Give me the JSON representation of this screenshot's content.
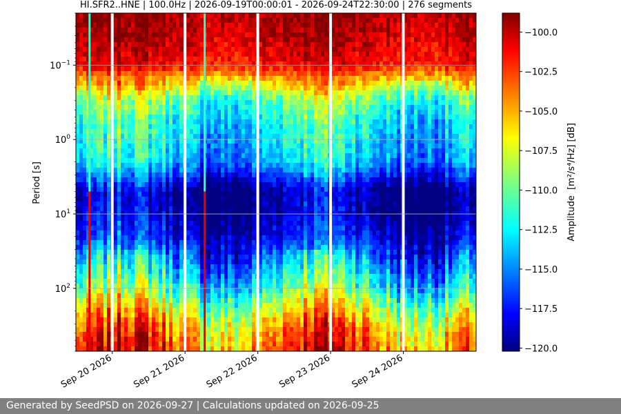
{
  "chart_data": {
    "type": "heatmap",
    "title": "HI.SFR2..HNE | 100.0Hz | 2026-09-19T00:00:01 - 2026-09-24T22:30:00 | 276 segments",
    "xlabel": "",
    "ylabel": "Period [s]",
    "y_scale": "log",
    "x_range": [
      "2026-09-19T12:00",
      "2026-09-25T00:00"
    ],
    "ylim_period_s": [
      0.02,
      700
    ],
    "x_ticks": [
      "Sep 20 2026",
      "Sep 21 2026",
      "Sep 22 2026",
      "Sep 23 2026",
      "Sep 24 2026"
    ],
    "x_tick_dates": [
      "2026-09-20",
      "2026-09-21",
      "2026-09-22",
      "2026-09-23",
      "2026-09-24"
    ],
    "y_ticks": [
      {
        "value": 0.1,
        "base": "10",
        "exp": "−1"
      },
      {
        "value": 1,
        "base": "10",
        "exp": "0"
      },
      {
        "value": 10,
        "base": "10",
        "exp": "1"
      },
      {
        "value": 100,
        "base": "10",
        "exp": "2"
      }
    ],
    "grid": true,
    "colormap": "jet",
    "colorbar": {
      "label": "Amplitude",
      "unit": "[m²/s⁴/Hz] [dB]",
      "range": [
        -120.2,
        -98.8
      ],
      "ticks": [
        "−100.0",
        "−102.5",
        "−105.0",
        "−107.5",
        "−110.0",
        "−112.5",
        "−115.0",
        "−117.5",
        "−120.0"
      ],
      "tick_values": [
        -100,
        -102.5,
        -105,
        -107.5,
        -110,
        -112.5,
        -115,
        -117.5,
        -120
      ]
    },
    "amplitude_profile_db": [
      {
        "period_s": 0.02,
        "amplitude_db": -99.5
      },
      {
        "period_s": 0.05,
        "amplitude_db": -100.3
      },
      {
        "period_s": 0.1,
        "amplitude_db": -101.5
      },
      {
        "period_s": 0.2,
        "amplitude_db": -107
      },
      {
        "period_s": 0.3,
        "amplitude_db": -110
      },
      {
        "period_s": 0.6,
        "amplitude_db": -112
      },
      {
        "period_s": 1,
        "amplitude_db": -112.5
      },
      {
        "period_s": 2,
        "amplitude_db": -113.5
      },
      {
        "period_s": 3,
        "amplitude_db": -116
      },
      {
        "period_s": 5,
        "amplitude_db": -119.5
      },
      {
        "period_s": 10,
        "amplitude_db": -119
      },
      {
        "period_s": 20,
        "amplitude_db": -117.5
      },
      {
        "period_s": 40,
        "amplitude_db": -114.5
      },
      {
        "period_s": 100,
        "amplitude_db": -111
      },
      {
        "period_s": 200,
        "amplitude_db": -107
      },
      {
        "period_s": 400,
        "amplitude_db": -104
      },
      {
        "period_s": 700,
        "amplitude_db": -103
      }
    ],
    "data_gaps": [
      "2026-09-20T00:00",
      "2026-09-21T00:00",
      "2026-09-22T00:00",
      "2026-09-23T00:00",
      "2026-09-24T00:00"
    ],
    "anomalous_segments": [
      "2026-09-19T16:30",
      "2026-09-21T06:30"
    ],
    "colors": {
      "gap": "#ffffff",
      "grid": "#b0b0b0",
      "footer_bg": "#808080",
      "footer_text": "#ffffff"
    }
  },
  "footer": {
    "text": "Generated by SeedPSD on 2026-09-27 | Calculations updated on 2026-09-25"
  }
}
